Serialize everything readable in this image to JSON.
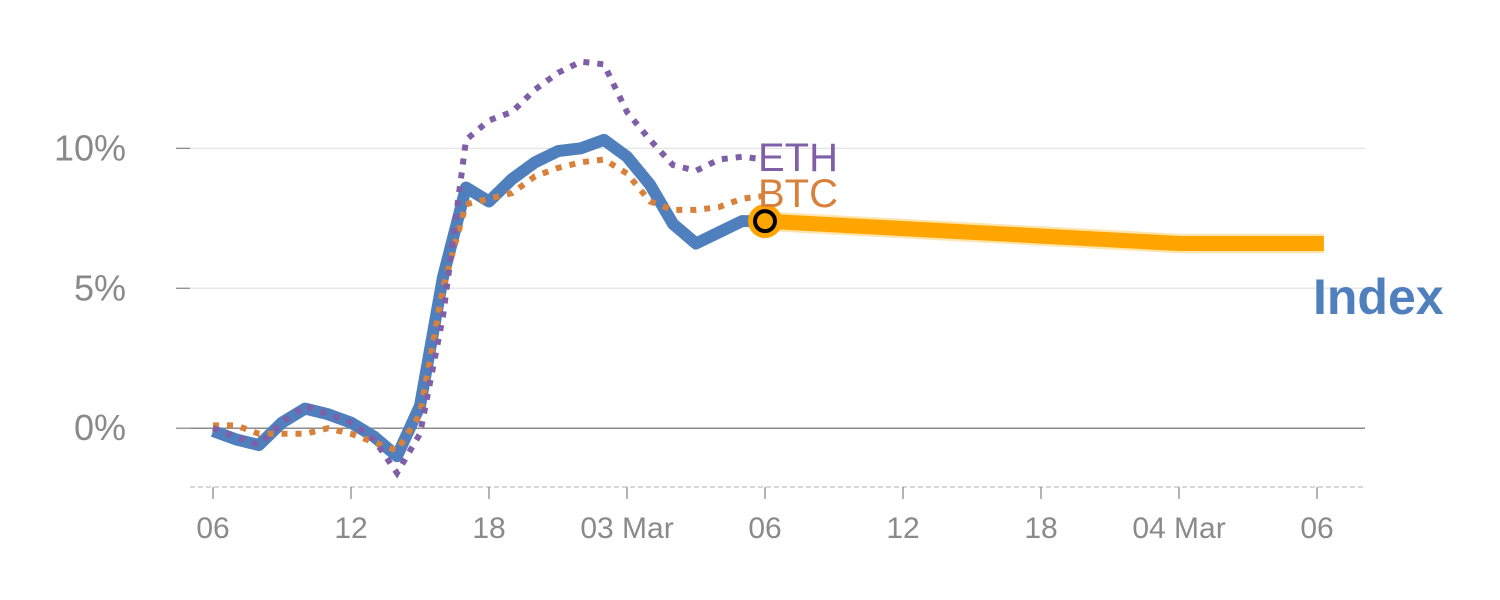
{
  "chart_data": {
    "type": "line",
    "title": "",
    "xlabel": "",
    "ylabel": "",
    "x_unit": "hours from 02 Mar 00:00",
    "xlim": [
      5.3,
      56
    ],
    "ylim": [
      -2.1,
      15.3
    ],
    "grid": true,
    "y_ticks": [
      {
        "value": 0,
        "label": "0%"
      },
      {
        "value": 5,
        "label": "5%"
      },
      {
        "value": 10,
        "label": "10%"
      }
    ],
    "x_ticks": [
      {
        "value": 6,
        "label": "06"
      },
      {
        "value": 12,
        "label": "12"
      },
      {
        "value": 18,
        "label": "18"
      },
      {
        "value": 24,
        "label": "03 Mar"
      },
      {
        "value": 30,
        "label": "06"
      },
      {
        "value": 36,
        "label": "12"
      },
      {
        "value": 42,
        "label": "18"
      },
      {
        "value": 48,
        "label": "04 Mar"
      },
      {
        "value": 54,
        "label": "06"
      }
    ],
    "series": [
      {
        "name": "ETH",
        "label": "ETH",
        "color": "#7f60a8",
        "style": "dotted",
        "x": [
          6,
          7,
          8,
          9,
          10,
          11,
          12,
          13,
          14,
          15,
          16,
          17,
          18,
          19,
          20,
          21,
          22,
          23,
          24,
          25,
          26,
          27,
          28,
          29,
          30
        ],
        "y": [
          0.0,
          -0.3,
          -0.6,
          0.2,
          0.8,
          0.5,
          0.2,
          -0.4,
          -1.6,
          -0.2,
          4.0,
          10.3,
          11.0,
          11.3,
          12.1,
          12.7,
          13.1,
          13.0,
          11.3,
          10.3,
          9.4,
          9.2,
          9.6,
          9.7,
          9.6
        ]
      },
      {
        "name": "BTC",
        "label": "BTC",
        "color": "#d9803a",
        "style": "dotted",
        "x": [
          6,
          7,
          8,
          9,
          10,
          11,
          12,
          13,
          14,
          15,
          16,
          17,
          18,
          19,
          20,
          21,
          22,
          23,
          24,
          25,
          26,
          27,
          28,
          29,
          30
        ],
        "y": [
          0.1,
          0.1,
          -0.2,
          -0.2,
          -0.2,
          0.0,
          -0.2,
          -0.5,
          -0.8,
          0.5,
          5.0,
          8.0,
          8.2,
          8.4,
          9.0,
          9.3,
          9.5,
          9.6,
          9.1,
          8.1,
          7.8,
          7.8,
          7.9,
          8.2,
          8.3
        ]
      },
      {
        "name": "Index",
        "label": "Index",
        "color": "#4f80bd",
        "style": "solid",
        "x": [
          6,
          7,
          8,
          9,
          10,
          11,
          12,
          13,
          14,
          15,
          16,
          17,
          18,
          19,
          20,
          21,
          22,
          23,
          24,
          25,
          26,
          27,
          28,
          29,
          30
        ],
        "y": [
          -0.1,
          -0.4,
          -0.6,
          0.2,
          0.7,
          0.5,
          0.2,
          -0.3,
          -1.0,
          0.8,
          5.4,
          8.6,
          8.1,
          8.9,
          9.5,
          9.9,
          10.0,
          10.3,
          9.7,
          8.7,
          7.3,
          6.6,
          7.0,
          7.4,
          7.4
        ]
      },
      {
        "name": "Index forecast",
        "color": "#ffa500",
        "style": "band",
        "x": [
          30,
          48,
          54.3
        ],
        "y": [
          7.4,
          6.6,
          6.6
        ],
        "band": 0.35
      }
    ],
    "current_point": {
      "x": 30,
      "y": 7.4
    }
  }
}
